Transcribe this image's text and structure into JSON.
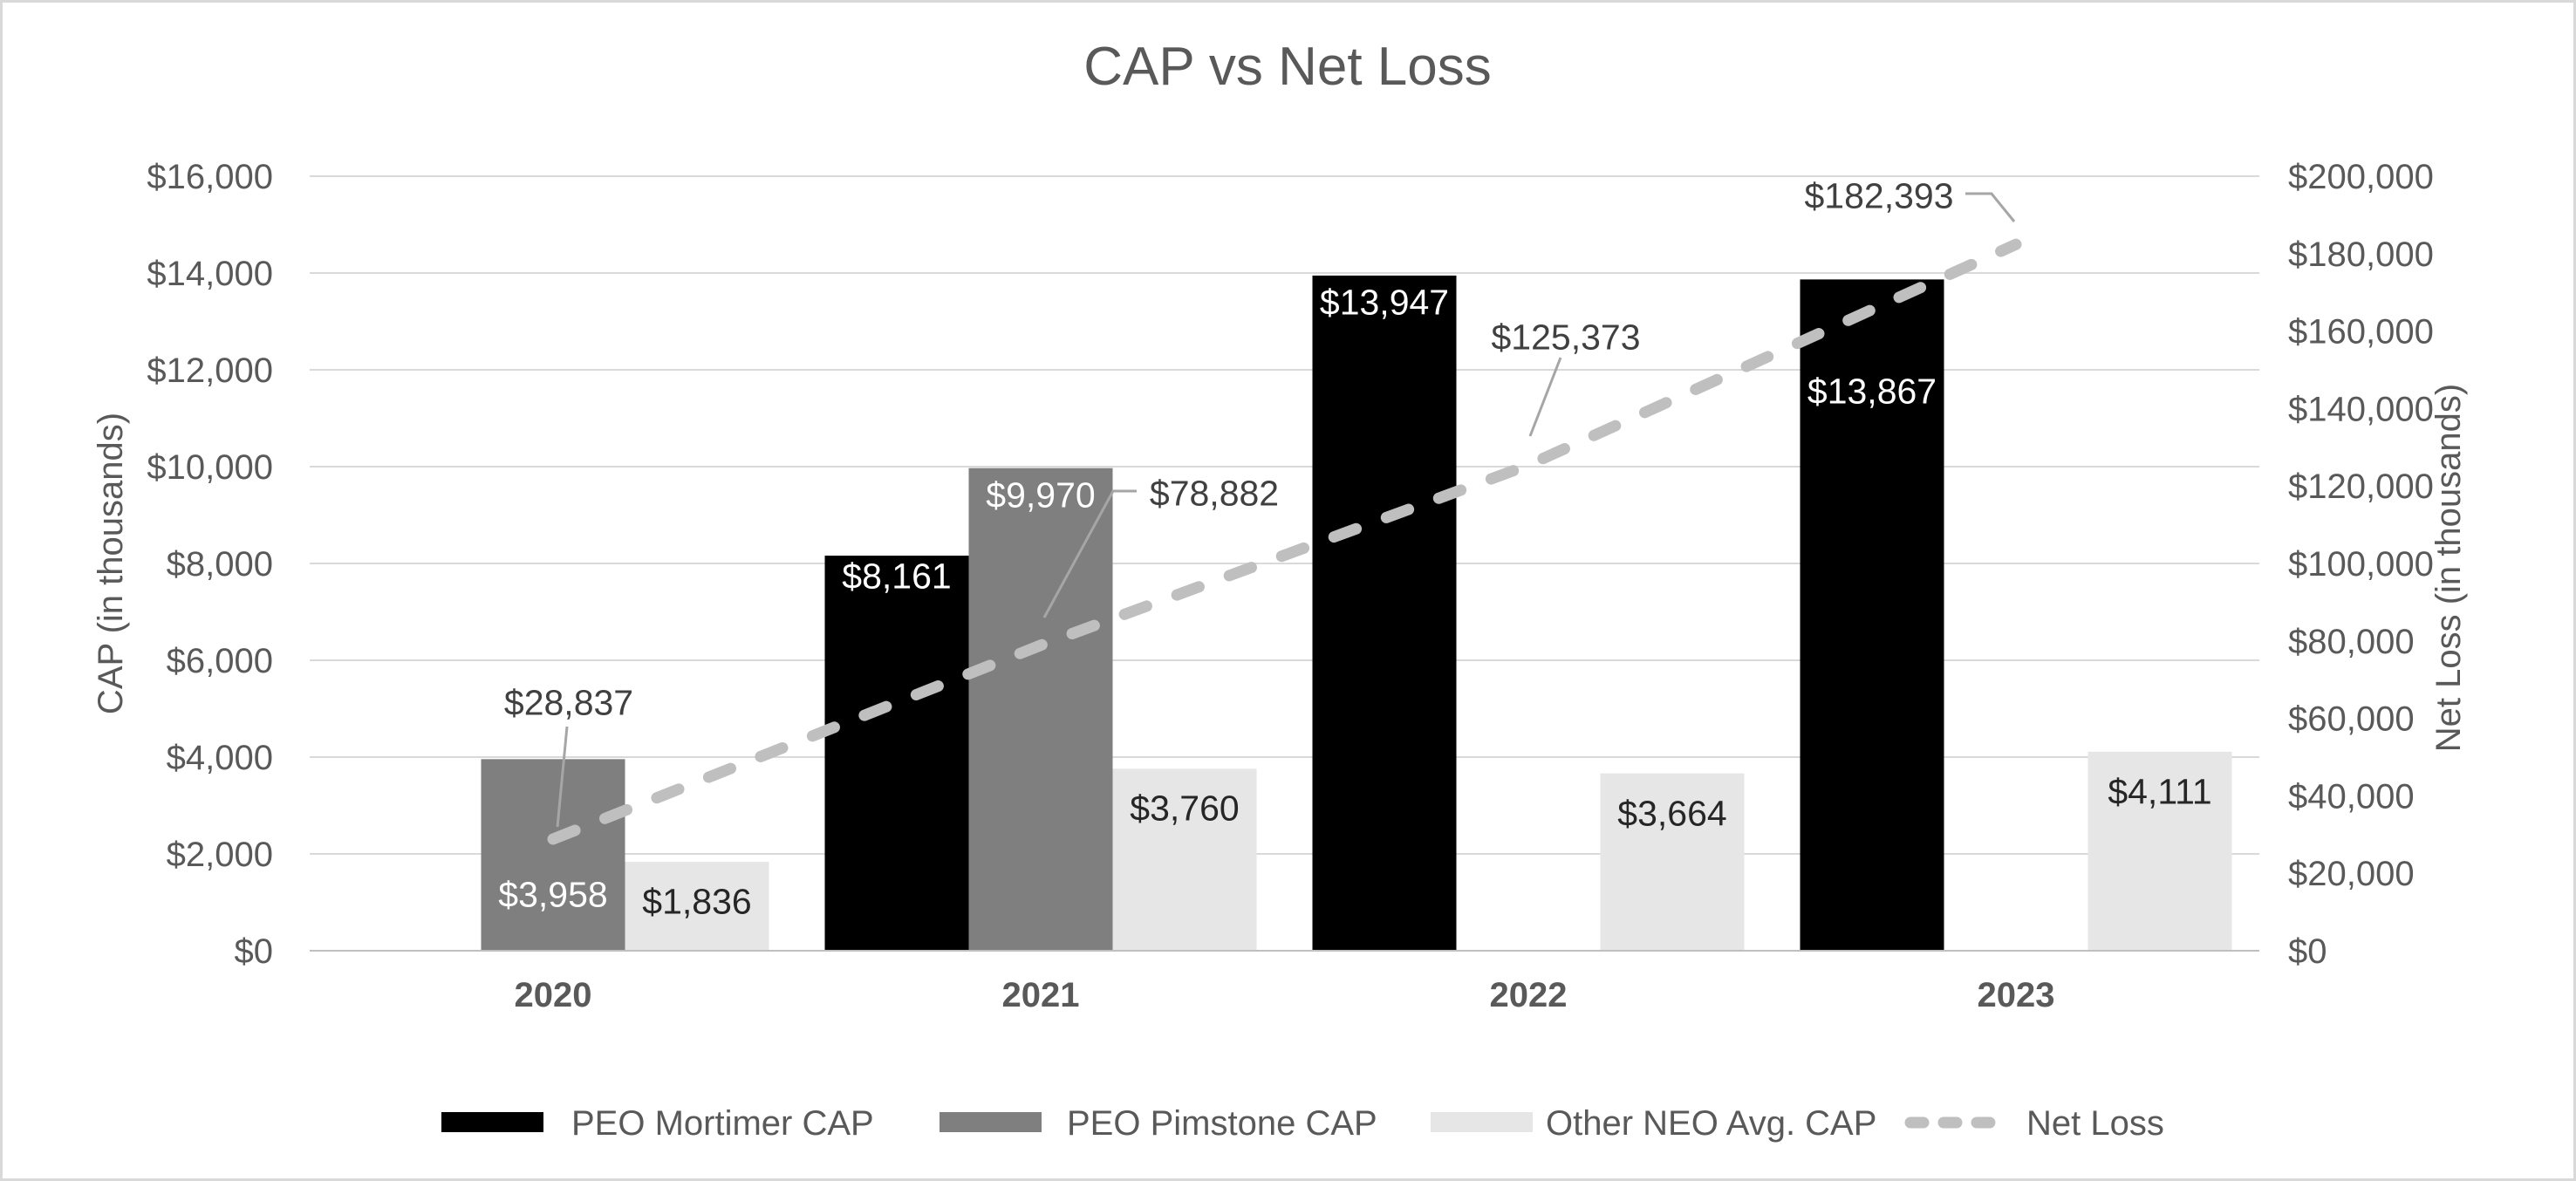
{
  "chart_data": {
    "type": "combo-bar-line",
    "title": "CAP vs Net Loss",
    "categories": [
      "2020",
      "2021",
      "2022",
      "2023"
    ],
    "series": [
      {
        "name": "PEO Mortimer CAP",
        "type": "bar",
        "axis": "left",
        "color": "#000000",
        "label_color": "#ffffff",
        "values": [
          null,
          8161,
          13947,
          13867
        ],
        "value_labels": [
          null,
          "$8,161",
          "$13,947",
          "$13,867"
        ]
      },
      {
        "name": "PEO Pimstone CAP",
        "type": "bar",
        "axis": "left",
        "color": "#7f7f7f",
        "label_color": "#ffffff",
        "values": [
          3958,
          9970,
          null,
          null
        ],
        "value_labels": [
          "$3,958",
          "$9,970",
          null,
          null
        ]
      },
      {
        "name": "Other NEO Avg. CAP",
        "type": "bar",
        "axis": "left",
        "color": "#e6e6e6",
        "label_color": "#262626",
        "values": [
          1836,
          3760,
          3664,
          4111
        ],
        "value_labels": [
          "$1,836",
          "$3,760",
          "$3,664",
          "$4,111"
        ]
      },
      {
        "name": "Net Loss",
        "type": "line",
        "axis": "right",
        "color": "#bfbfbf",
        "label_color": "#404040",
        "values": [
          28837,
          78882,
          125373,
          182393
        ],
        "value_labels": [
          "$28,837",
          "$78,882",
          "$125,373",
          "$182,393"
        ]
      }
    ],
    "left_ylabel": "CAP (in thousands)",
    "right_ylabel": "Net Loss (in thousands)",
    "left_ylim": [
      0,
      16000
    ],
    "left_step": 2000,
    "left_tick_labels": [
      "$0",
      "$2,000",
      "$4,000",
      "$6,000",
      "$8,000",
      "$10,000",
      "$12,000",
      "$14,000",
      "$16,000"
    ],
    "right_ylim": [
      0,
      200000
    ],
    "right_step": 20000,
    "right_tick_labels": [
      "$0",
      "$20,000",
      "$40,000",
      "$60,000",
      "$80,000",
      "$100,000",
      "$120,000",
      "$140,000",
      "$160,000",
      "$180,000",
      "$200,000"
    ],
    "grid": true,
    "legend_position": "bottom",
    "legend": [
      "PEO Mortimer CAP",
      "PEO Pimstone CAP",
      "Other NEO Avg. CAP",
      "Net Loss"
    ]
  },
  "colors": {
    "background": "#ffffff",
    "border": "#d9d9d9",
    "gridline": "#d9d9d9",
    "axis_line": "#bfbfbf",
    "text": "#595959",
    "leader_line": "#a6a6a6"
  }
}
